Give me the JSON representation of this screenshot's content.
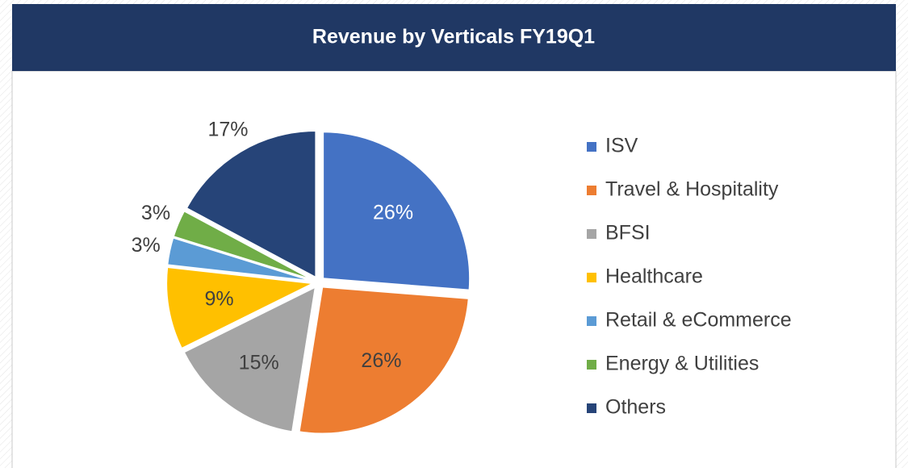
{
  "chart_data": {
    "type": "pie",
    "title": "Revenue by Verticals FY19Q1",
    "categories": [
      "ISV",
      "Travel & Hospitality",
      "BFSI",
      "Healthcare",
      "Retail & eCommerce",
      "Energy & Utilities",
      "Others"
    ],
    "values": [
      26,
      26,
      15,
      9,
      3,
      3,
      17
    ],
    "value_labels": [
      "26%",
      "26%",
      "15%",
      "9%",
      "3%",
      "3%",
      "17%"
    ],
    "colors": [
      "#4472c4",
      "#ed7d31",
      "#a5a5a5",
      "#ffc000",
      "#5b9bd5",
      "#70ad47",
      "#264478"
    ],
    "label_positions": [
      "inside",
      "inside",
      "inside",
      "inside",
      "outside",
      "outside",
      "outside"
    ],
    "value_label_colors": [
      "#ffffff",
      "#404040",
      "#404040",
      "#404040",
      "#404040",
      "#404040",
      "#404040"
    ],
    "legend": "right"
  }
}
